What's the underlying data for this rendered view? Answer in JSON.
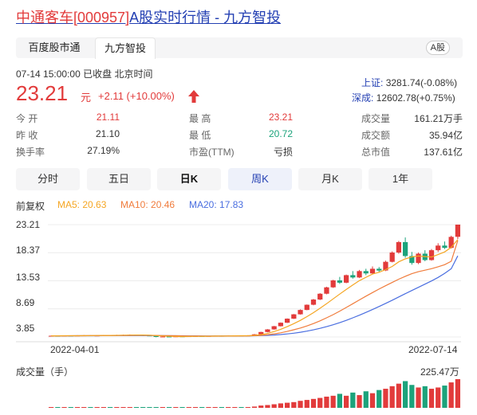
{
  "header": {
    "title_stock": "中通客车[000957]",
    "title_rest": "A股实时行情 - 九方智投"
  },
  "tabs": [
    {
      "label": "百度股市通",
      "active": false
    },
    {
      "label": "九方智投",
      "active": true
    }
  ],
  "market_badge": "A股",
  "quote": {
    "timestamp": "07-14 15:00:00",
    "status": "已收盘",
    "zone": "北京时间",
    "price": "23.21",
    "unit": "元",
    "change": "+2.11 (+10.00%)",
    "direction": "up"
  },
  "indices": [
    {
      "label": "上证:",
      "value": "3281.74(-0.08%)"
    },
    {
      "label": "深成:",
      "value": "12602.78(+0.75%)"
    }
  ],
  "stats": {
    "open": {
      "label": "今 开",
      "value": "21.11",
      "color": "#e23b3b"
    },
    "prev_close": {
      "label": "昨 收",
      "value": "21.10",
      "color": "#333333"
    },
    "turnover": {
      "label": "换手率",
      "value": "27.19%",
      "color": "#333333"
    },
    "high": {
      "label": "最 高",
      "value": "23.21",
      "color": "#e23b3b"
    },
    "low": {
      "label": "最 低",
      "value": "20.72",
      "color": "#1ca37b"
    },
    "pe": {
      "label": "市盈(TTM)",
      "value": "亏损",
      "color": "#333333"
    },
    "volume": {
      "label": "成交量",
      "value": "161.21万手",
      "color": "#333333"
    },
    "amount": {
      "label": "成交额",
      "value": "35.94亿",
      "color": "#333333"
    },
    "market_cap": {
      "label": "总市值",
      "value": "137.61亿",
      "color": "#333333"
    }
  },
  "periods": [
    "分时",
    "五日",
    "日K",
    "周K",
    "月K",
    "1年"
  ],
  "selected_period": "日K",
  "legend": {
    "adjust": "前复权",
    "ma5": "MA5: 20.63",
    "ma10": "MA10: 20.46",
    "ma20": "MA20: 17.83"
  },
  "colors": {
    "up": "#e23b3b",
    "down": "#1ca37b",
    "ma5": "#f5a623",
    "ma10": "#f07c3c",
    "ma20": "#4a6ee0",
    "link": "#2440b3"
  },
  "chart_data": {
    "type": "candlestick",
    "y_ticks": [
      "23.21",
      "18.37",
      "13.53",
      "8.69",
      "3.85"
    ],
    "ylim": [
      3.85,
      23.21
    ],
    "x_ticks": [
      "2022-04-01",
      "2022-07-14"
    ],
    "volume_label": "成交量（手）",
    "volume_max": "225.47万",
    "candles": [
      {
        "o": 4.0,
        "c": 4.05,
        "h": 4.1,
        "l": 3.95
      },
      {
        "o": 4.05,
        "c": 4.02,
        "h": 4.1,
        "l": 3.98
      },
      {
        "o": 4.02,
        "c": 4.08,
        "h": 4.12,
        "l": 3.98
      },
      {
        "o": 4.08,
        "c": 4.05,
        "h": 4.12,
        "l": 4.0
      },
      {
        "o": 4.05,
        "c": 4.1,
        "h": 4.15,
        "l": 4.02
      },
      {
        "o": 4.1,
        "c": 4.12,
        "h": 4.18,
        "l": 4.05
      },
      {
        "o": 4.12,
        "c": 4.08,
        "h": 4.15,
        "l": 4.02
      },
      {
        "o": 4.08,
        "c": 4.1,
        "h": 4.15,
        "l": 4.05
      },
      {
        "o": 4.1,
        "c": 4.15,
        "h": 4.2,
        "l": 4.06
      },
      {
        "o": 4.15,
        "c": 4.12,
        "h": 4.18,
        "l": 4.08
      },
      {
        "o": 4.12,
        "c": 4.18,
        "h": 4.22,
        "l": 4.08
      },
      {
        "o": 4.18,
        "c": 4.2,
        "h": 4.25,
        "l": 4.12
      },
      {
        "o": 4.2,
        "c": 4.22,
        "h": 4.28,
        "l": 4.15
      },
      {
        "o": 4.22,
        "c": 4.18,
        "h": 4.25,
        "l": 4.1
      },
      {
        "o": 4.18,
        "c": 4.1,
        "h": 4.2,
        "l": 4.02
      },
      {
        "o": 4.1,
        "c": 4.05,
        "h": 4.12,
        "l": 3.98
      },
      {
        "o": 4.05,
        "c": 3.85,
        "h": 4.08,
        "l": 3.8
      },
      {
        "o": 3.85,
        "c": 3.92,
        "h": 3.98,
        "l": 3.8
      },
      {
        "o": 3.92,
        "c": 3.88,
        "h": 3.96,
        "l": 3.82
      },
      {
        "o": 3.88,
        "c": 3.95,
        "h": 4.0,
        "l": 3.84
      },
      {
        "o": 3.95,
        "c": 3.9,
        "h": 3.98,
        "l": 3.85
      },
      {
        "o": 3.9,
        "c": 3.98,
        "h": 4.02,
        "l": 3.86
      },
      {
        "o": 3.98,
        "c": 4.0,
        "h": 4.05,
        "l": 3.92
      },
      {
        "o": 4.0,
        "c": 3.96,
        "h": 4.04,
        "l": 3.92
      },
      {
        "o": 3.96,
        "c": 4.02,
        "h": 4.06,
        "l": 3.92
      },
      {
        "o": 4.02,
        "c": 4.05,
        "h": 4.08,
        "l": 3.98
      },
      {
        "o": 4.05,
        "c": 4.0,
        "h": 4.08,
        "l": 3.96
      },
      {
        "o": 4.0,
        "c": 4.06,
        "h": 4.1,
        "l": 3.96
      },
      {
        "o": 4.06,
        "c": 4.08,
        "h": 4.12,
        "l": 4.02
      },
      {
        "o": 4.08,
        "c": 4.05,
        "h": 4.12,
        "l": 4.0
      },
      {
        "o": 4.05,
        "c": 4.1,
        "h": 4.15,
        "l": 4.02
      },
      {
        "o": 4.1,
        "c": 4.3,
        "h": 4.35,
        "l": 4.05
      },
      {
        "o": 4.3,
        "c": 4.7,
        "h": 4.75,
        "l": 4.25
      },
      {
        "o": 4.7,
        "c": 5.15,
        "h": 5.2,
        "l": 4.65
      },
      {
        "o": 5.15,
        "c": 5.7,
        "h": 5.75,
        "l": 5.1
      },
      {
        "o": 5.7,
        "c": 6.3,
        "h": 6.35,
        "l": 5.65
      },
      {
        "o": 6.3,
        "c": 7.0,
        "h": 7.05,
        "l": 6.25
      },
      {
        "o": 7.0,
        "c": 7.75,
        "h": 7.8,
        "l": 6.95
      },
      {
        "o": 7.75,
        "c": 8.5,
        "h": 8.6,
        "l": 7.7
      },
      {
        "o": 8.5,
        "c": 9.4,
        "h": 9.45,
        "l": 8.45
      },
      {
        "o": 9.4,
        "c": 10.3,
        "h": 10.4,
        "l": 9.3
      },
      {
        "o": 10.3,
        "c": 11.3,
        "h": 11.4,
        "l": 10.2
      },
      {
        "o": 11.3,
        "c": 12.4,
        "h": 12.5,
        "l": 11.2
      },
      {
        "o": 12.4,
        "c": 13.6,
        "h": 13.7,
        "l": 12.3
      },
      {
        "o": 13.6,
        "c": 13.2,
        "h": 14.2,
        "l": 13.0
      },
      {
        "o": 13.2,
        "c": 14.5,
        "h": 14.6,
        "l": 13.1
      },
      {
        "o": 14.5,
        "c": 14.1,
        "h": 15.2,
        "l": 13.9
      },
      {
        "o": 14.1,
        "c": 15.2,
        "h": 15.4,
        "l": 14.0
      },
      {
        "o": 15.2,
        "c": 14.8,
        "h": 15.6,
        "l": 14.5
      },
      {
        "o": 14.8,
        "c": 15.6,
        "h": 16.0,
        "l": 14.7
      },
      {
        "o": 15.6,
        "c": 15.3,
        "h": 15.9,
        "l": 15.0
      },
      {
        "o": 15.3,
        "c": 16.8,
        "h": 17.0,
        "l": 15.2
      },
      {
        "o": 16.8,
        "c": 18.4,
        "h": 18.6,
        "l": 16.7
      },
      {
        "o": 18.4,
        "c": 20.2,
        "h": 20.4,
        "l": 18.2
      },
      {
        "o": 20.2,
        "c": 17.8,
        "h": 21.0,
        "l": 17.5
      },
      {
        "o": 17.8,
        "c": 16.6,
        "h": 18.5,
        "l": 16.3
      },
      {
        "o": 16.6,
        "c": 18.2,
        "h": 18.4,
        "l": 16.4
      },
      {
        "o": 18.2,
        "c": 17.1,
        "h": 18.8,
        "l": 16.9
      },
      {
        "o": 17.1,
        "c": 18.8,
        "h": 19.0,
        "l": 17.0
      },
      {
        "o": 18.8,
        "c": 19.6,
        "h": 20.0,
        "l": 18.5
      },
      {
        "o": 19.6,
        "c": 19.2,
        "h": 20.3,
        "l": 19.0
      },
      {
        "o": 19.2,
        "c": 21.1,
        "h": 21.3,
        "l": 19.1
      },
      {
        "o": 21.11,
        "c": 23.21,
        "h": 23.21,
        "l": 20.72
      }
    ],
    "ma5": [
      4.04,
      4.04,
      4.05,
      4.06,
      4.06,
      4.07,
      4.09,
      4.1,
      4.11,
      4.11,
      4.13,
      4.15,
      4.17,
      4.18,
      4.18,
      4.15,
      4.09,
      4.02,
      3.96,
      3.93,
      3.9,
      3.93,
      3.95,
      3.94,
      3.97,
      4.0,
      4.01,
      4.02,
      4.04,
      4.05,
      4.06,
      4.12,
      4.25,
      4.46,
      4.79,
      5.17,
      5.62,
      6.14,
      6.71,
      7.35,
      8.04,
      8.79,
      9.58,
      10.42,
      11.24,
      12.04,
      12.8,
      13.56,
      14.14,
      14.68,
      15.0,
      15.45,
      16.0,
      16.8,
      17.3,
      17.65,
      17.8,
      17.7,
      17.62,
      18.05,
      18.5,
      19.3,
      20.63
    ],
    "ma10": [
      4.04,
      4.04,
      4.04,
      4.05,
      4.05,
      4.06,
      4.07,
      4.08,
      4.09,
      4.09,
      4.1,
      4.11,
      4.13,
      4.14,
      4.14,
      4.13,
      4.11,
      4.09,
      4.07,
      4.05,
      4.03,
      4.02,
      4.01,
      4.0,
      3.99,
      3.99,
      3.99,
      4.0,
      4.01,
      4.02,
      4.04,
      4.07,
      4.13,
      4.23,
      4.38,
      4.57,
      4.8,
      5.08,
      5.39,
      5.75,
      6.16,
      6.63,
      7.14,
      7.7,
      8.3,
      8.93,
      9.58,
      10.24,
      10.88,
      11.5,
      12.1,
      12.68,
      13.24,
      13.8,
      14.3,
      14.75,
      15.1,
      15.35,
      15.62,
      15.95,
      16.3,
      16.9,
      20.46
    ],
    "ma20": [
      4.04,
      4.04,
      4.04,
      4.04,
      4.05,
      4.05,
      4.06,
      4.06,
      4.07,
      4.07,
      4.08,
      4.08,
      4.09,
      4.09,
      4.09,
      4.09,
      4.08,
      4.07,
      4.06,
      4.05,
      4.04,
      4.03,
      4.03,
      4.02,
      4.02,
      4.02,
      4.02,
      4.02,
      4.02,
      4.03,
      4.04,
      4.05,
      4.08,
      4.12,
      4.18,
      4.26,
      4.37,
      4.5,
      4.66,
      4.85,
      5.07,
      5.33,
      5.62,
      5.95,
      6.31,
      6.71,
      7.14,
      7.6,
      8.08,
      8.58,
      9.1,
      9.63,
      10.18,
      10.74,
      11.3,
      11.85,
      12.4,
      12.95,
      13.5,
      14.1,
      14.8,
      15.6,
      17.83
    ],
    "volumes": [
      3,
      3,
      3,
      3,
      3,
      3,
      3,
      3,
      3,
      3,
      3,
      3,
      3,
      3,
      3,
      3,
      5,
      3,
      3,
      3,
      3,
      3,
      3,
      3,
      3,
      3,
      3,
      3,
      3,
      3,
      3,
      10,
      18,
      22,
      28,
      35,
      40,
      45,
      55,
      62,
      70,
      78,
      88,
      95,
      110,
      95,
      120,
      100,
      130,
      115,
      140,
      150,
      170,
      190,
      210,
      180,
      160,
      170,
      150,
      160,
      175,
      200,
      225.47
    ]
  }
}
